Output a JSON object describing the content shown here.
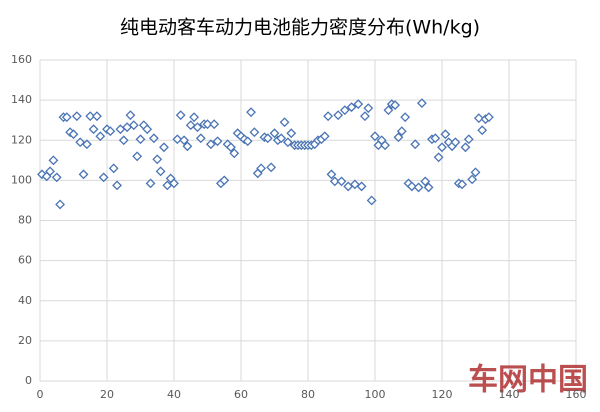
{
  "chart_data": {
    "type": "scatter",
    "title": "纯电动客车动力电池能力密度分布(Wh/kg)",
    "watermark": "车网中国",
    "color": "#4a74b4",
    "xlim": [
      0,
      160
    ],
    "xticks": [
      0,
      20,
      40,
      60,
      80,
      100,
      120,
      140,
      160
    ],
    "ylim": [
      0,
      160
    ],
    "yticks": [
      0,
      20,
      40,
      60,
      80,
      100,
      120,
      140,
      160
    ],
    "grid": true,
    "x": [
      0.6,
      2,
      3,
      4,
      5,
      6,
      7,
      8,
      9,
      10,
      11,
      12,
      13,
      14,
      15,
      16,
      17,
      18,
      19,
      20,
      21,
      22,
      23,
      24,
      25,
      26,
      27,
      28,
      29,
      30,
      31,
      32,
      33,
      34,
      35,
      36,
      37,
      38,
      39,
      40,
      41,
      42,
      43,
      44,
      45,
      46,
      47,
      48,
      49,
      50,
      51,
      52,
      53,
      54,
      55,
      56,
      57,
      58,
      59,
      60,
      61,
      62,
      63,
      64,
      65,
      66,
      67,
      68,
      69,
      70,
      71,
      72,
      73,
      74,
      75,
      76,
      77,
      78,
      79,
      80,
      81,
      82,
      83,
      84,
      85,
      86,
      87,
      88,
      89,
      90,
      91,
      92,
      93,
      94,
      95,
      96,
      97,
      98,
      99,
      100,
      101,
      102,
      103,
      104,
      105,
      106,
      107,
      108,
      109,
      110,
      111,
      112,
      113,
      114,
      115,
      116,
      117,
      118,
      119,
      120,
      121,
      122,
      123,
      124,
      125,
      126,
      127,
      128,
      129,
      130,
      131,
      132,
      133,
      134
    ],
    "y": [
      103,
      102,
      104.5,
      110,
      101.5,
      88,
      131.5,
      131.5,
      124,
      123,
      132,
      119,
      103,
      118,
      132,
      125.5,
      132,
      122,
      101.5,
      125.5,
      124.5,
      106,
      97.5,
      125.5,
      120,
      126.5,
      132.5,
      127.5,
      112,
      120.5,
      127.5,
      125.5,
      98.5,
      121,
      110.5,
      104.5,
      116.5,
      97.5,
      101,
      98.5,
      120.5,
      132.5,
      120,
      117,
      127.5,
      131.5,
      126.5,
      121,
      128,
      128,
      118,
      128,
      119.5,
      98.5,
      100,
      118,
      116.5,
      113.5,
      123.5,
      122,
      120.5,
      119.5,
      134,
      124,
      103.5,
      106,
      121.5,
      121,
      106.5,
      123.5,
      120,
      121,
      129,
      119,
      123.5,
      117.5,
      117.5,
      117.5,
      117.5,
      117.5,
      117.5,
      118,
      120,
      120.5,
      122,
      132,
      103,
      99.5,
      132.5,
      99.5,
      135,
      97,
      136.5,
      98,
      138,
      97,
      132,
      136,
      90,
      122,
      117.5,
      120,
      117.5,
      135,
      138,
      137.5,
      121.5,
      124.5,
      131.5,
      98.5,
      97,
      118,
      96.5,
      138.5,
      99.5,
      96.5,
      120.5,
      121,
      111.5,
      116.5,
      123,
      119,
      117,
      119,
      98.5,
      98,
      116.5,
      120.5,
      100.5,
      104,
      131,
      125,
      130.5,
      131.5
    ]
  }
}
